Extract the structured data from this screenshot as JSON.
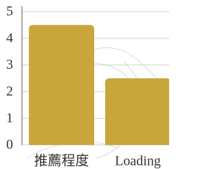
{
  "chart_data": {
    "type": "bar",
    "categories": [
      "推薦程度",
      "Loading"
    ],
    "values": [
      4.5,
      2.5
    ],
    "color": "#c8a63b",
    "ylim": [
      0,
      5
    ],
    "yticks": [
      0,
      1,
      2,
      3,
      4,
      5
    ],
    "grid": true
  }
}
